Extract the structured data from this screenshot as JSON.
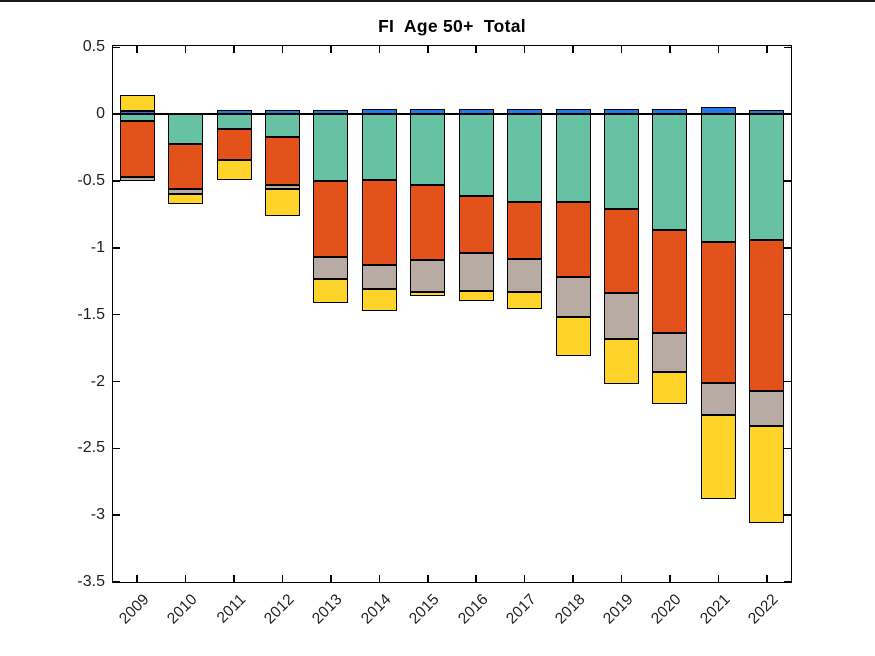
{
  "figure": {
    "background": "#ffffff",
    "axis_color": "#000000"
  },
  "chart_data": {
    "type": "bar",
    "stacked": true,
    "title": "FI  Age 50+  Total",
    "categories": [
      "2009",
      "2010",
      "2011",
      "2012",
      "2013",
      "2014",
      "2015",
      "2016",
      "2017",
      "2018",
      "2019",
      "2020",
      "2021",
      "2022"
    ],
    "series": [
      {
        "name": "blue",
        "color": "#2579E6",
        "values": [
          0.02,
          0.01,
          0.03,
          0.03,
          0.03,
          0.04,
          0.04,
          0.04,
          0.04,
          0.04,
          0.04,
          0.04,
          0.05,
          0.03
        ]
      },
      {
        "name": "green",
        "color": "#67C2A3",
        "values": [
          -0.05,
          -0.22,
          -0.11,
          -0.17,
          -0.5,
          -0.49,
          -0.53,
          -0.61,
          -0.66,
          -0.66,
          -0.71,
          -0.87,
          -0.96,
          -0.94
        ]
      },
      {
        "name": "orange",
        "color": "#E4521B",
        "values": [
          -0.42,
          -0.34,
          -0.23,
          -0.36,
          -0.57,
          -0.64,
          -0.56,
          -0.43,
          -0.42,
          -0.56,
          -0.63,
          -0.77,
          -1.05,
          -1.13
        ]
      },
      {
        "name": "gray",
        "color": "#B7ABA3",
        "values": [
          -0.03,
          -0.04,
          0,
          -0.03,
          -0.16,
          -0.18,
          -0.24,
          -0.28,
          -0.25,
          -0.3,
          -0.34,
          -0.29,
          -0.24,
          -0.26
        ]
      },
      {
        "name": "yellow",
        "color": "#FFD42A",
        "values": [
          0.12,
          -0.07,
          -0.15,
          -0.2,
          -0.18,
          -0.16,
          -0.03,
          -0.08,
          -0.13,
          -0.29,
          -0.34,
          -0.24,
          -0.63,
          -0.73
        ]
      }
    ],
    "ylim": [
      -3.5,
      0.51
    ],
    "y_ticks": [
      0.5,
      0,
      -0.5,
      -1,
      -1.5,
      -2,
      -2.5,
      -3,
      -3.5
    ],
    "xlabel": "",
    "ylabel": "",
    "grid": false,
    "legend": "none",
    "zero_line": true,
    "bar_edge_color": "#000000"
  }
}
